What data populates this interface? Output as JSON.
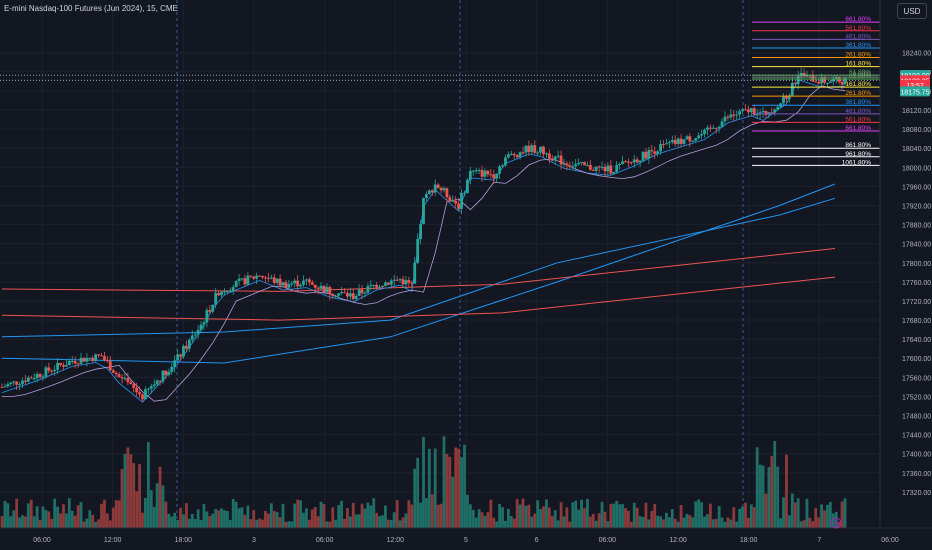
{
  "header": {
    "title": "E-mini Nasdaq-100 Futures (Jun 2024), 15, CME",
    "currency_button": "USD"
  },
  "colors": {
    "background": "#131722",
    "grid": "#1e222d",
    "up": "#26a69a",
    "down": "#ef5350",
    "volume_up": "#1f6f67",
    "volume_down": "#8c3a3a",
    "ma_blue": "#2196f3",
    "ma_red": "#ef5350",
    "ma_purple": "#b39ddb",
    "axis_text": "#b2b5be"
  },
  "price_badges": [
    {
      "value": "18193.00",
      "price": 18193.0,
      "bg": "#26a69a",
      "fg": "#ffffff"
    },
    {
      "value": "18182.25",
      "price": 18182.25,
      "bg": "#f23645",
      "fg": "#ffffff"
    },
    {
      "value": "13:57",
      "price": 18172.5,
      "bg": "#f23645",
      "fg": "#ffffff"
    },
    {
      "value": "18175.75",
      "price": 18159.0,
      "bg": "#26a69a",
      "fg": "#ffffff"
    }
  ],
  "fib_levels": [
    {
      "label": "661.80%",
      "price": 18304,
      "color": "#e040fb"
    },
    {
      "label": "561.80%",
      "price": 18286,
      "color": "#f23645"
    },
    {
      "label": "461.80%",
      "price": 18268,
      "color": "#7e57c2"
    },
    {
      "label": "361.80%",
      "price": 18250,
      "color": "#2196f3"
    },
    {
      "label": "261.80%",
      "price": 18230,
      "color": "#ff9800"
    },
    {
      "label": "161.80%",
      "price": 18211,
      "color": "#ffeb3b"
    },
    {
      "label": "61.80%",
      "price": 18193,
      "color": "#4caf50"
    },
    {
      "label": "0.00%",
      "price": 18189,
      "color": "#808080"
    },
    {
      "label": "61.80%",
      "price": 18185,
      "color": "#4caf50"
    },
    {
      "label": "161.80%",
      "price": 18168,
      "color": "#ffeb3b"
    },
    {
      "label": "261.80%",
      "price": 18149,
      "color": "#ff9800"
    },
    {
      "label": "361.80%",
      "price": 18130,
      "color": "#2196f3"
    },
    {
      "label": "461.80%",
      "price": 18112,
      "color": "#7e57c2"
    },
    {
      "label": "561.80%",
      "price": 18094,
      "color": "#f23645"
    },
    {
      "label": "661.80%",
      "price": 18076,
      "color": "#e040fb"
    },
    {
      "label": "861.80%",
      "price": 18040,
      "color": "#ffffff"
    },
    {
      "label": "961.80%",
      "price": 18022,
      "color": "#ffffff"
    },
    {
      "label": "1061.80%",
      "price": 18004,
      "color": "#ffffff"
    }
  ],
  "chart_data": {
    "type": "candlestick",
    "title": "E-mini Nasdaq-100 Futures (Jun 2024), 15, CME",
    "interval": "15",
    "ylim": [
      17280,
      18340
    ],
    "y_ticks": [
      "18240.00",
      "18200.00",
      "18160.00",
      "18120.00",
      "18080.00",
      "18040.00",
      "18000.00",
      "17960.00",
      "17920.00",
      "17880.00",
      "17840.00",
      "17800.00",
      "17760.00",
      "17720.00",
      "17680.00",
      "17640.00",
      "17600.00",
      "17560.00",
      "17520.00",
      "17480.00",
      "17440.00",
      "17400.00",
      "17360.00",
      "17320.00"
    ],
    "x_ticks": [
      "06:00",
      "12:00",
      "18:00",
      "3",
      "06:00",
      "12:00",
      "5",
      "6",
      "06:00",
      "12:00",
      "18:00",
      "7",
      "06:00"
    ],
    "session_separators": [
      "18:00",
      "5",
      "18:00"
    ],
    "last_price": 18182.25,
    "countdown": "13:57",
    "price_path": [
      [
        0,
        17540
      ],
      [
        6,
        17565
      ],
      [
        12,
        17595
      ],
      [
        17,
        17605
      ],
      [
        20,
        17560
      ],
      [
        24,
        17520
      ],
      [
        30,
        17600
      ],
      [
        34,
        17670
      ],
      [
        37,
        17740
      ],
      [
        44,
        17775
      ],
      [
        48,
        17755
      ],
      [
        52,
        17760
      ],
      [
        56,
        17740
      ],
      [
        60,
        17730
      ],
      [
        64,
        17755
      ],
      [
        68,
        17765
      ],
      [
        70,
        17752
      ],
      [
        72,
        17930
      ],
      [
        74,
        17965
      ],
      [
        78,
        17920
      ],
      [
        80,
        17990
      ],
      [
        84,
        17985
      ],
      [
        86,
        18020
      ],
      [
        90,
        18040
      ],
      [
        92,
        18035
      ],
      [
        96,
        18010
      ],
      [
        100,
        18000
      ],
      [
        104,
        17995
      ],
      [
        108,
        18015
      ],
      [
        112,
        18040
      ],
      [
        116,
        18055
      ],
      [
        120,
        18070
      ],
      [
        124,
        18105
      ],
      [
        128,
        18120
      ],
      [
        130,
        18110
      ],
      [
        134,
        18145
      ],
      [
        136,
        18195
      ],
      [
        140,
        18180
      ],
      [
        144,
        18182
      ]
    ],
    "series": [
      {
        "type": "moving_average",
        "color": "#2196f3",
        "values": [
          [
            0,
            17600
          ],
          [
            40,
            17590
          ],
          [
            70,
            17645
          ],
          [
            100,
            17760
          ],
          [
            140,
            17920
          ],
          [
            150,
            17965
          ]
        ]
      },
      {
        "type": "moving_average",
        "color": "#2196f3",
        "values": [
          [
            0,
            17645
          ],
          [
            40,
            17655
          ],
          [
            70,
            17680
          ],
          [
            100,
            17800
          ],
          [
            140,
            17900
          ],
          [
            150,
            17935
          ]
        ]
      },
      {
        "type": "moving_average",
        "color": "#ef5350",
        "values": [
          [
            0,
            17745
          ],
          [
            50,
            17740
          ],
          [
            90,
            17755
          ],
          [
            150,
            17830
          ]
        ]
      },
      {
        "type": "moving_average",
        "color": "#ef5350",
        "values": [
          [
            0,
            17690
          ],
          [
            50,
            17680
          ],
          [
            90,
            17695
          ],
          [
            150,
            17770
          ]
        ]
      }
    ]
  }
}
